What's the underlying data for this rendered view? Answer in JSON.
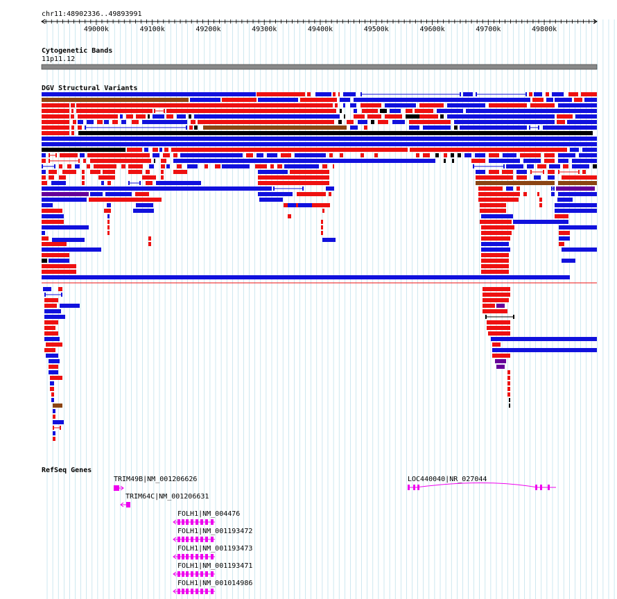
{
  "locus": "chr11:48902336..49893991",
  "ruler": {
    "ticks": [
      {
        "pos": 49000000,
        "label": "49000k"
      },
      {
        "pos": 49100000,
        "label": "49100k"
      },
      {
        "pos": 49200000,
        "label": "49200k"
      },
      {
        "pos": 49300000,
        "label": "49300k"
      },
      {
        "pos": 49400000,
        "label": "49400k"
      },
      {
        "pos": 49500000,
        "label": "49500k"
      },
      {
        "pos": 49600000,
        "label": "49600k"
      },
      {
        "pos": 49700000,
        "label": "49700k"
      },
      {
        "pos": 49800000,
        "label": "49800k"
      }
    ]
  },
  "tracks": {
    "cytoband": {
      "title": "Cytogenetic Bands",
      "band": "11p11.12"
    },
    "dgv": {
      "title": "DGV Structural Variants"
    },
    "refseq": {
      "title": "RefSeq Genes"
    }
  },
  "colors": {
    "gain": "#ee1111",
    "loss": "#1111dd",
    "both": "#8b4513",
    "inversion": "#660099",
    "other": "#000000",
    "gene": "#ee00ee",
    "grid": "#add8e6",
    "band": "#888888"
  },
  "genes": [
    {
      "label": "TRIM49B|NM_001206626",
      "strand": "+"
    },
    {
      "label": "TRIM64C|NM_001206631",
      "strand": "-"
    },
    {
      "label": "FOLH1|NM_004476",
      "strand": "-"
    },
    {
      "label": "FOLH1|NM_001193472",
      "strand": "-"
    },
    {
      "label": "FOLH1|NM_001193473",
      "strand": "-"
    },
    {
      "label": "FOLH1|NM_001193471",
      "strand": "-"
    },
    {
      "label": "FOLH1|NM_001014986",
      "strand": "-"
    },
    {
      "label": "LOC440040|NR_027044",
      "strand": "+"
    }
  ]
}
